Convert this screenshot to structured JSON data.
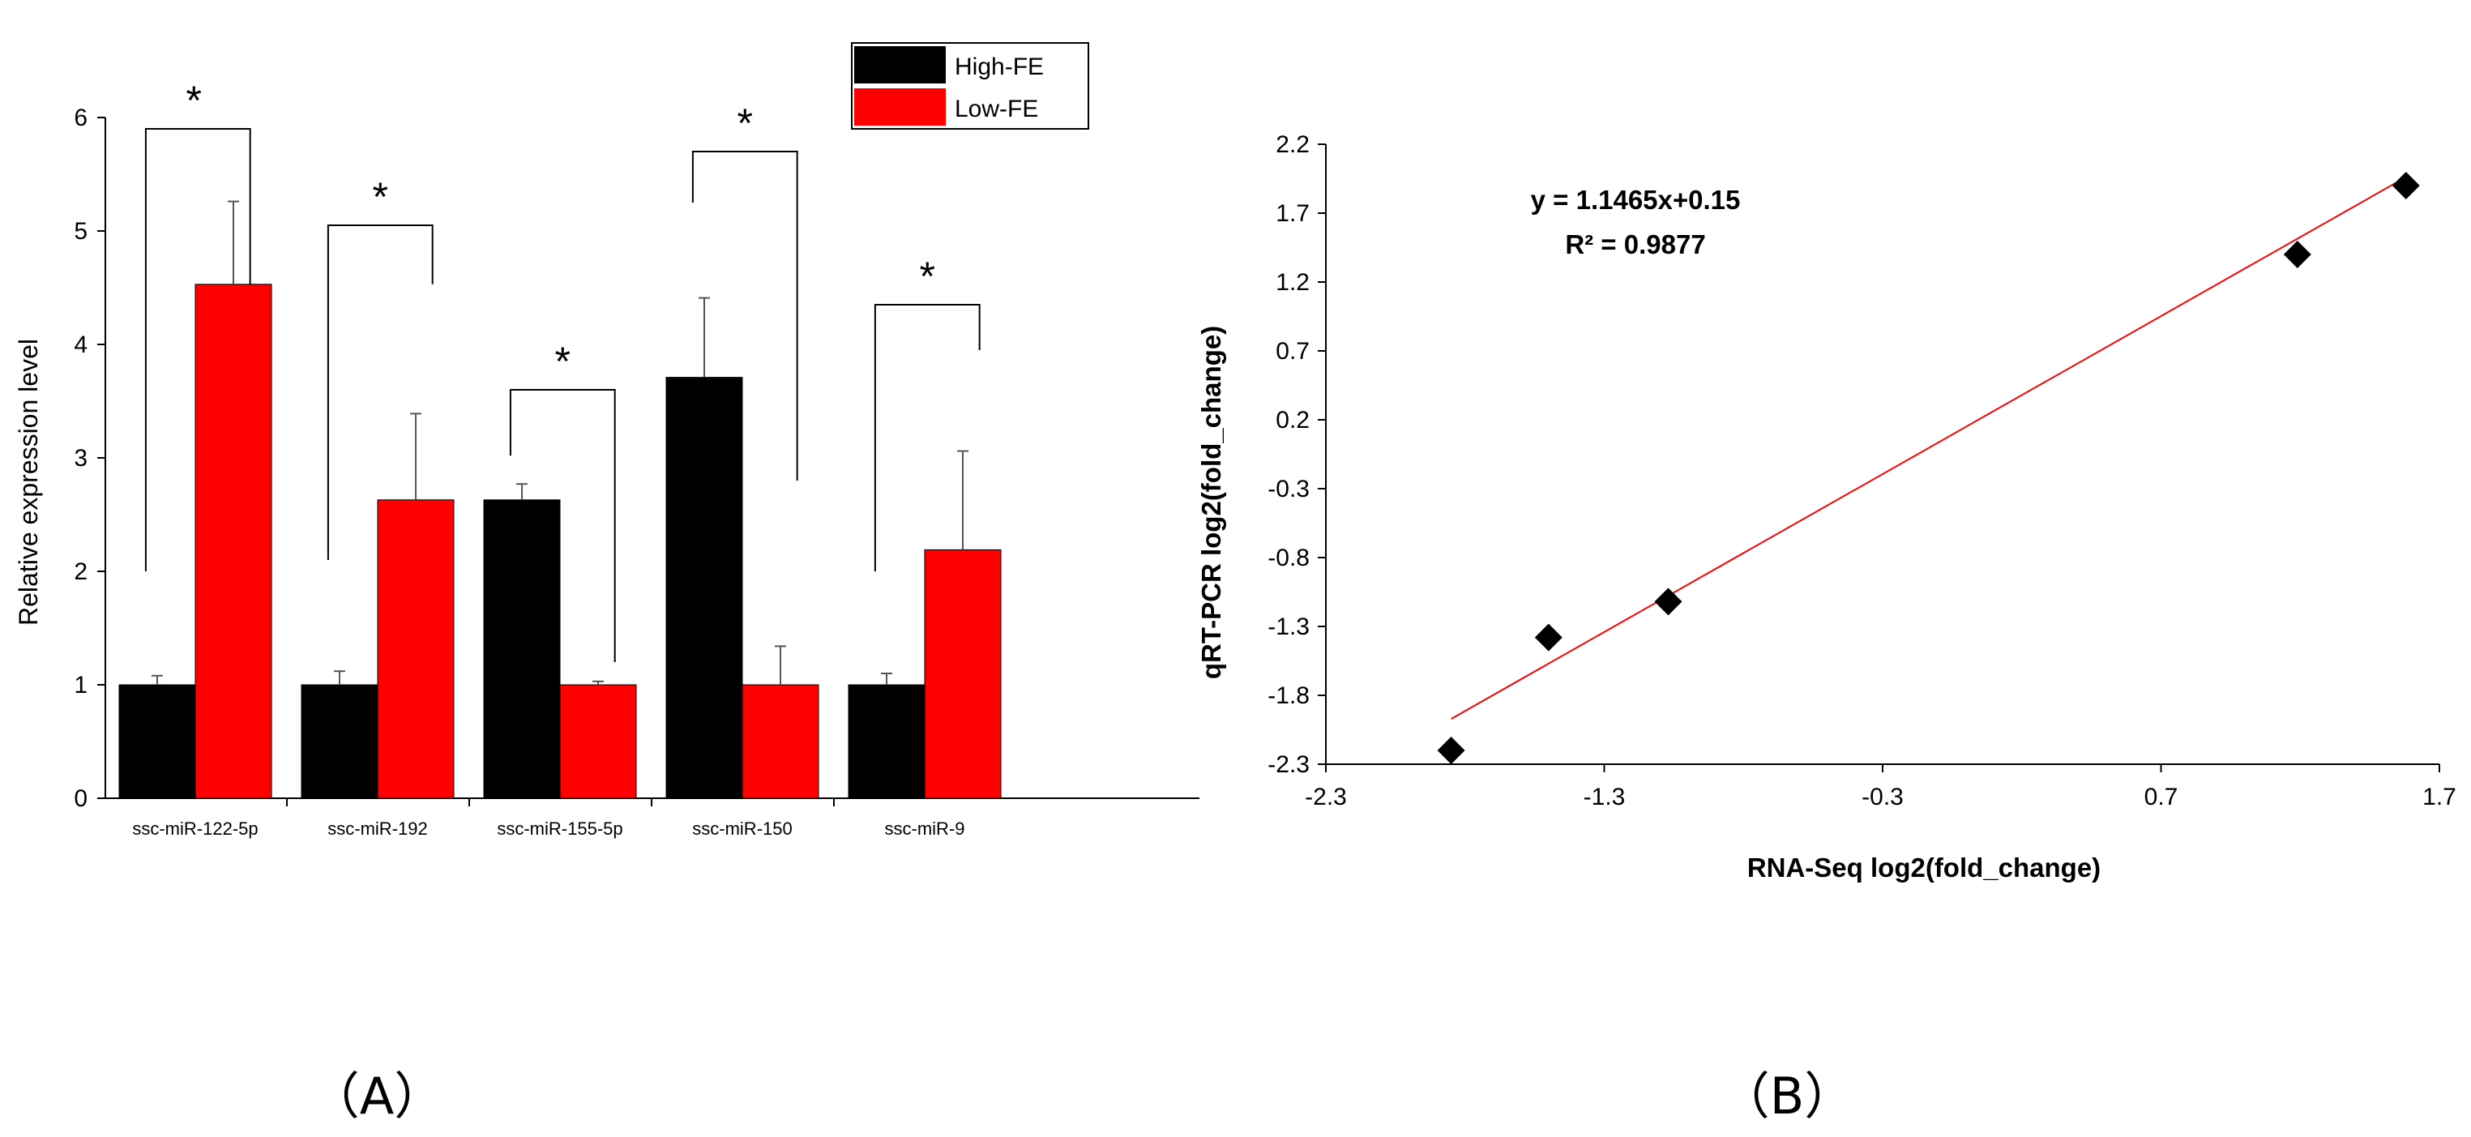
{
  "panels": {
    "a_label": "（A）",
    "b_label": "（B）"
  },
  "chart_data": [
    {
      "type": "bar",
      "title": "",
      "xlabel": "",
      "ylabel": "Relative expression level",
      "ylim": [
        0,
        6
      ],
      "yticks": [
        "0",
        "1",
        "2",
        "3",
        "4",
        "5",
        "6"
      ],
      "categories": [
        "ssc-miR-122-5p",
        "ssc-miR-192",
        "ssc-miR-155-5p",
        "ssc-miR-150",
        "ssc-miR-9"
      ],
      "series": [
        {
          "name": "High-FE",
          "color": "#000000",
          "values": [
            1.0,
            1.0,
            2.63,
            3.71,
            1.0
          ],
          "errors": [
            0.08,
            0.12,
            0.14,
            0.7,
            0.1
          ]
        },
        {
          "name": "Low-FE",
          "color": "#ff0000",
          "values": [
            4.53,
            2.63,
            1.0,
            1.0,
            2.19
          ],
          "errors": [
            0.73,
            0.76,
            0.03,
            0.34,
            0.87
          ]
        }
      ],
      "significance": [
        {
          "category": "ssc-miR-122-5p",
          "label": "*",
          "y_from": 2.0,
          "y_to": 4.53,
          "y_top": 5.9
        },
        {
          "category": "ssc-miR-192",
          "label": "*",
          "y_from": 2.1,
          "y_to": 4.53,
          "y_top": 5.05
        },
        {
          "category": "ssc-miR-155-5p",
          "label": "*",
          "y_from": 3.02,
          "y_to": 1.2,
          "y_top": 3.6
        },
        {
          "category": "ssc-miR-150",
          "label": "*",
          "y_from": 5.25,
          "y_to": 2.8,
          "y_top": 5.7
        },
        {
          "category": "ssc-miR-9",
          "label": "*",
          "y_from": 2.0,
          "y_to": 3.95,
          "y_top": 4.35
        }
      ],
      "legend": {
        "position": "top-right",
        "entries": [
          "High-FE",
          "Low-FE"
        ]
      }
    },
    {
      "type": "scatter",
      "title": "",
      "xlabel": "RNA-Seq log2(fold_change)",
      "ylabel": "qRT-PCR log2(fold_change)",
      "xlim": [
        -2.3,
        1.7
      ],
      "ylim": [
        -2.3,
        2.2
      ],
      "xticks": [
        "-2.3",
        "-1.3",
        "-0.3",
        "0.7",
        "1.7"
      ],
      "yticks": [
        "-2.3",
        "-1.8",
        "-1.3",
        "-0.8",
        "-0.3",
        "0.2",
        "0.7",
        "1.2",
        "1.7",
        "2.2"
      ],
      "points": [
        {
          "x": -1.85,
          "y": -2.2
        },
        {
          "x": -1.5,
          "y": -1.38
        },
        {
          "x": -1.07,
          "y": -1.12
        },
        {
          "x": 1.19,
          "y": 1.4
        },
        {
          "x": 1.58,
          "y": 1.9
        }
      ],
      "fit": {
        "slope": 1.1465,
        "intercept": 0.15,
        "x_range": [
          -1.85,
          1.58
        ],
        "color": "#ff0000"
      },
      "equation": "y = 1.1465x+0.15",
      "r_squared": "R² = 0.9877"
    }
  ]
}
